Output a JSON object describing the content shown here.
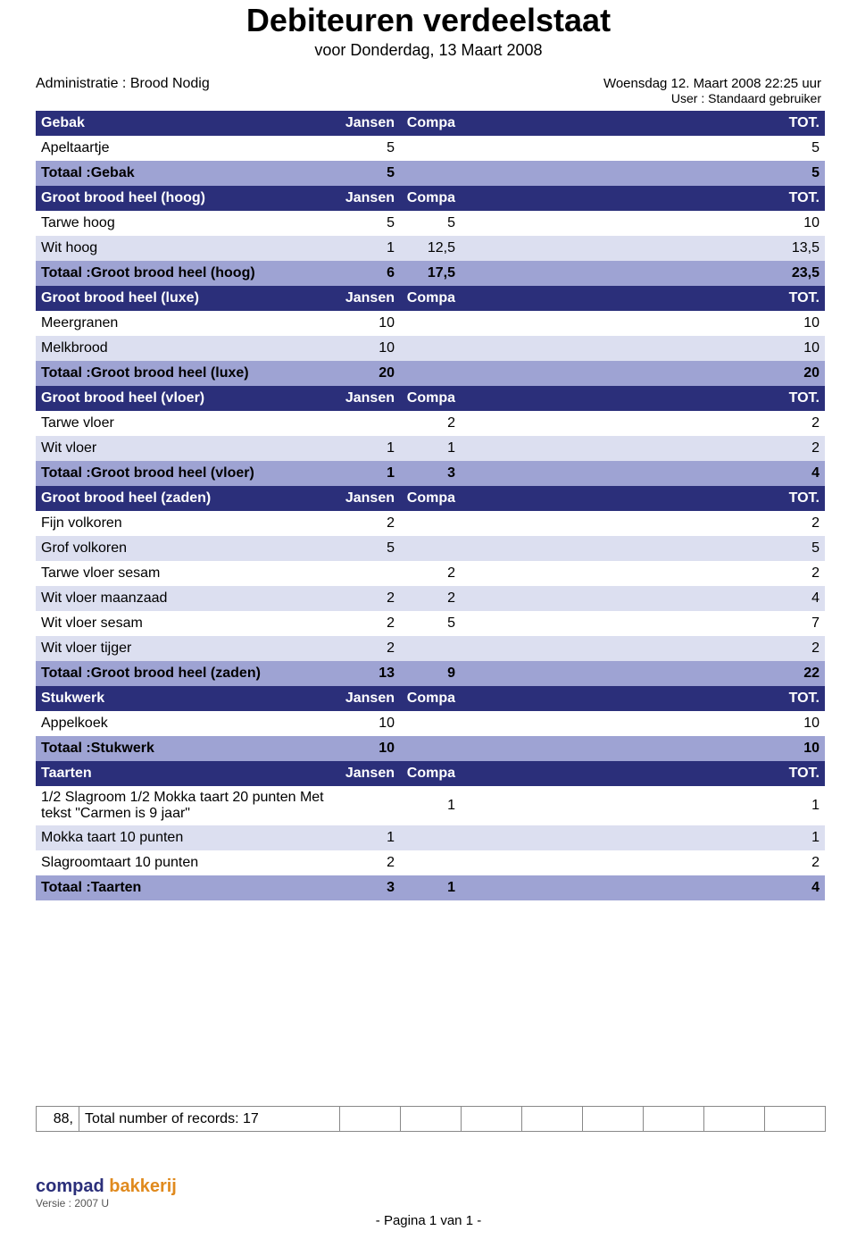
{
  "header": {
    "title": "Debiteuren verdeelstaat",
    "subtitle": "voor Donderdag, 13 Maart 2008",
    "admin": "Administratie : Brood Nodig",
    "timestamp": "Woensdag 12. Maart 2008 22:25 uur",
    "user": "User : Standaard gebruiker"
  },
  "columns": {
    "c1": "Jansen",
    "c2": "Compa",
    "tot": "TOT."
  },
  "rows": [
    {
      "type": "section",
      "label": "Gebak"
    },
    {
      "type": "white",
      "label": "Apeltaartje",
      "v": [
        "5",
        "",
        "",
        "",
        "",
        "",
        "",
        "5"
      ]
    },
    {
      "type": "total",
      "label": "Totaal :Gebak",
      "v": [
        "5",
        "",
        "",
        "",
        "",
        "",
        "",
        "5"
      ]
    },
    {
      "type": "section",
      "label": "Groot brood heel (hoog)"
    },
    {
      "type": "white",
      "label": "Tarwe hoog",
      "v": [
        "5",
        "5",
        "",
        "",
        "",
        "",
        "",
        "10"
      ]
    },
    {
      "type": "light",
      "label": "Wit hoog",
      "v": [
        "1",
        "12,5",
        "",
        "",
        "",
        "",
        "",
        "13,5"
      ]
    },
    {
      "type": "total",
      "label": "Totaal :Groot brood heel (hoog)",
      "v": [
        "6",
        "17,5",
        "",
        "",
        "",
        "",
        "",
        "23,5"
      ]
    },
    {
      "type": "section",
      "label": "Groot brood heel (luxe)"
    },
    {
      "type": "white",
      "label": "Meergranen",
      "v": [
        "10",
        "",
        "",
        "",
        "",
        "",
        "",
        "10"
      ]
    },
    {
      "type": "light",
      "label": "Melkbrood",
      "v": [
        "10",
        "",
        "",
        "",
        "",
        "",
        "",
        "10"
      ]
    },
    {
      "type": "total",
      "label": "Totaal :Groot brood heel (luxe)",
      "v": [
        "20",
        "",
        "",
        "",
        "",
        "",
        "",
        "20"
      ]
    },
    {
      "type": "section",
      "label": "Groot brood heel (vloer)"
    },
    {
      "type": "white",
      "label": "Tarwe vloer",
      "v": [
        "",
        "2",
        "",
        "",
        "",
        "",
        "",
        "2"
      ]
    },
    {
      "type": "light",
      "label": "Wit vloer",
      "v": [
        "1",
        "1",
        "",
        "",
        "",
        "",
        "",
        "2"
      ]
    },
    {
      "type": "total",
      "label": "Totaal :Groot brood heel (vloer)",
      "v": [
        "1",
        "3",
        "",
        "",
        "",
        "",
        "",
        "4"
      ]
    },
    {
      "type": "section",
      "label": "Groot brood heel (zaden)"
    },
    {
      "type": "white",
      "label": "Fijn volkoren",
      "v": [
        "2",
        "",
        "",
        "",
        "",
        "",
        "",
        "2"
      ]
    },
    {
      "type": "light",
      "label": "Grof volkoren",
      "v": [
        "5",
        "",
        "",
        "",
        "",
        "",
        "",
        "5"
      ]
    },
    {
      "type": "white",
      "label": "Tarwe vloer sesam",
      "v": [
        "",
        "2",
        "",
        "",
        "",
        "",
        "",
        "2"
      ]
    },
    {
      "type": "light",
      "label": "Wit vloer maanzaad",
      "v": [
        "2",
        "2",
        "",
        "",
        "",
        "",
        "",
        "4"
      ]
    },
    {
      "type": "white",
      "label": "Wit vloer sesam",
      "v": [
        "2",
        "5",
        "",
        "",
        "",
        "",
        "",
        "7"
      ]
    },
    {
      "type": "light",
      "label": "Wit vloer tijger",
      "v": [
        "2",
        "",
        "",
        "",
        "",
        "",
        "",
        "2"
      ]
    },
    {
      "type": "total",
      "label": "Totaal :Groot brood heel (zaden)",
      "v": [
        "13",
        "9",
        "",
        "",
        "",
        "",
        "",
        "22"
      ]
    },
    {
      "type": "section",
      "label": "Stukwerk"
    },
    {
      "type": "white",
      "label": "Appelkoek",
      "v": [
        "10",
        "",
        "",
        "",
        "",
        "",
        "",
        "10"
      ]
    },
    {
      "type": "total",
      "label": "Totaal :Stukwerk",
      "v": [
        "10",
        "",
        "",
        "",
        "",
        "",
        "",
        "10"
      ]
    },
    {
      "type": "section",
      "label": "Taarten"
    },
    {
      "type": "white",
      "label": "1/2 Slagroom 1/2 Mokka taart 20 punten Met tekst \"Carmen is 9 jaar\"",
      "v": [
        "",
        "1",
        "",
        "",
        "",
        "",
        "",
        "1"
      ]
    },
    {
      "type": "light",
      "label": "Mokka taart 10 punten",
      "v": [
        "1",
        "",
        "",
        "",
        "",
        "",
        "",
        "1"
      ]
    },
    {
      "type": "white",
      "label": "Slagroomtaart 10 punten",
      "v": [
        "2",
        "",
        "",
        "",
        "",
        "",
        "",
        "2"
      ]
    },
    {
      "type": "total",
      "label": "Totaal :Taarten",
      "v": [
        "3",
        "1",
        "",
        "",
        "",
        "",
        "",
        "4"
      ]
    }
  ],
  "summary": {
    "left": "88,",
    "text": "Total number of records: 17"
  },
  "footer": {
    "brand1": "compad",
    "brand2": "bakkerij",
    "version": "Versie : 2007 U",
    "page": "- Pagina 1 van 1 -"
  },
  "style": {
    "section_bg": "#2b2f7a",
    "section_fg": "#ffffff",
    "total_bg": "#9ea3d3",
    "light_bg": "#dcdff0",
    "white_bg": "#ffffff",
    "brand1_color": "#2b2f7a",
    "brand2_color": "#e08a1e"
  }
}
